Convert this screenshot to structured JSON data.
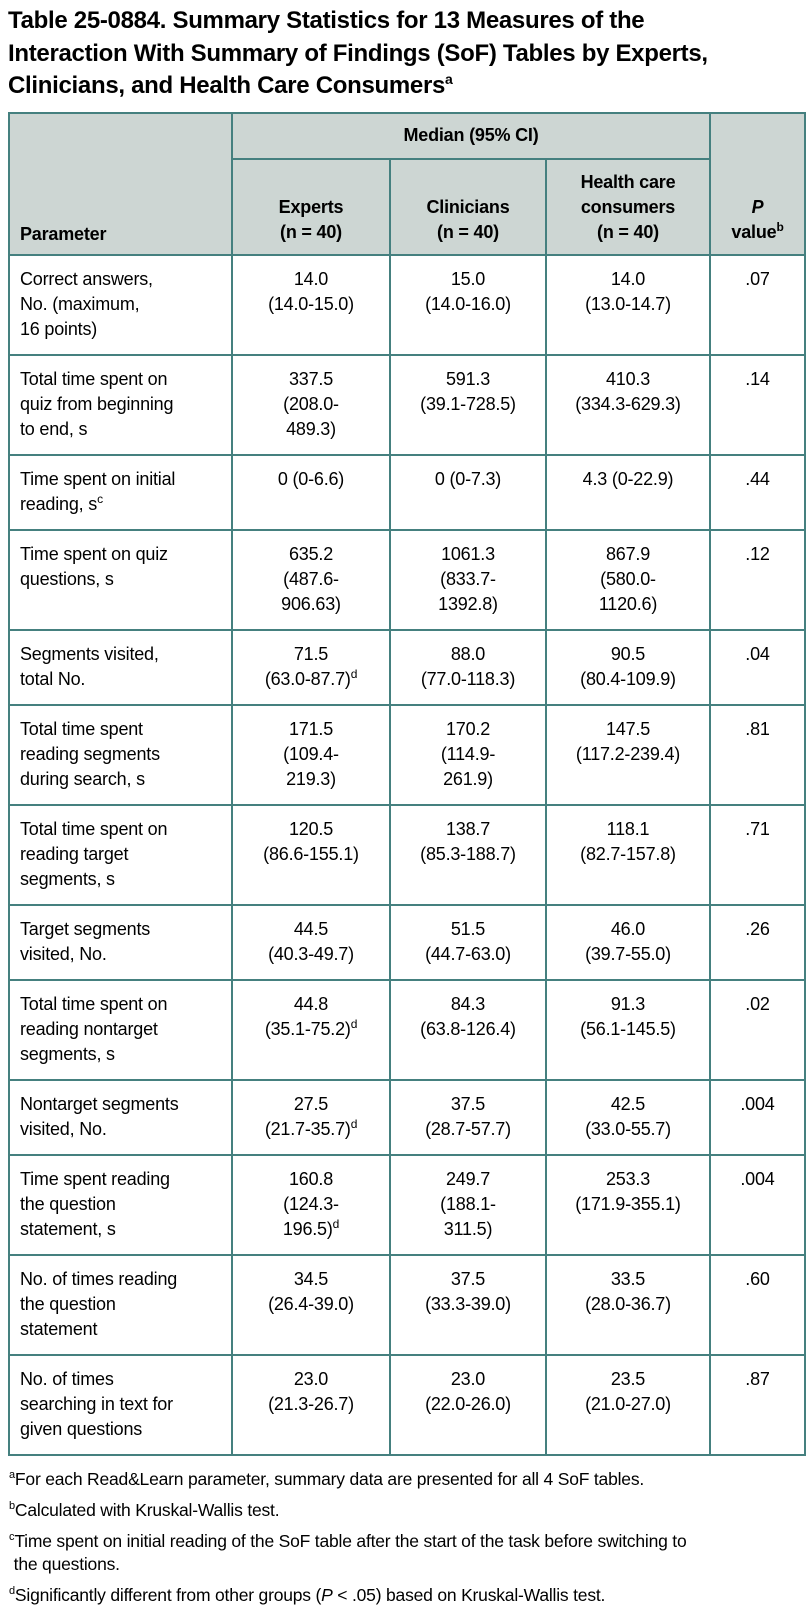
{
  "title": {
    "text": "Table 25-0884. Summary Statistics for 13 Measures of the\nInteraction With Summary of Findings (SoF) Tables by Experts,\nClinicians, and Health Care Consumers",
    "sup": "a"
  },
  "header": {
    "parameter": "Parameter",
    "median_group": "Median (95% CI)",
    "experts": "Experts\n(n = 40)",
    "clinicians": "Clinicians\n(n = 40)",
    "consumers": "Health care\nconsumers\n(n = 40)",
    "p_italic": "P",
    "p_rest": "value",
    "p_sup": "b"
  },
  "rows": [
    {
      "param": "Correct answers,\nNo. (maximum,\n16 points)",
      "experts": "14.0\n(14.0-15.0)",
      "clinicians": "15.0\n(14.0-16.0)",
      "consumers": "14.0\n(13.0-14.7)",
      "p": ".07"
    },
    {
      "param": "Total time spent on\nquiz from beginning\nto end, s",
      "experts": "337.5\n(208.0-\n489.3)",
      "clinicians": "591.3\n(39.1-728.5)",
      "consumers": "410.3\n(334.3-629.3)",
      "p": ".14"
    },
    {
      "param": "Time spent on initial\nreading, s",
      "param_sup": "c",
      "experts": "0 (0-6.6)",
      "clinicians": "0 (0-7.3)",
      "consumers": "4.3 (0-22.9)",
      "p": ".44"
    },
    {
      "param": "Time spent on quiz\nquestions, s",
      "experts": "635.2\n(487.6-\n906.63)",
      "clinicians": "1061.3\n(833.7-\n1392.8)",
      "consumers": "867.9\n(580.0-\n1120.6)",
      "p": ".12"
    },
    {
      "param": "Segments visited,\ntotal No.",
      "experts": "71.5\n(63.0-87.7)",
      "experts_sup": "d",
      "clinicians": "88.0\n(77.0-118.3)",
      "consumers": "90.5\n(80.4-109.9)",
      "p": ".04"
    },
    {
      "param": "Total time spent\nreading segments\nduring search, s",
      "experts": "171.5\n(109.4-\n219.3)",
      "clinicians": "170.2\n(114.9-\n261.9)",
      "consumers": "147.5\n(117.2-239.4)",
      "p": ".81"
    },
    {
      "param": "Total time spent on\nreading target\nsegments, s",
      "experts": "120.5\n(86.6-155.1)",
      "clinicians": "138.7\n(85.3-188.7)",
      "consumers": "118.1\n(82.7-157.8)",
      "p": ".71"
    },
    {
      "param": "Target segments\nvisited, No.",
      "experts": "44.5\n(40.3-49.7)",
      "clinicians": "51.5\n(44.7-63.0)",
      "consumers": "46.0\n(39.7-55.0)",
      "p": ".26"
    },
    {
      "param": "Total time spent on\nreading nontarget\nsegments, s",
      "experts": "44.8\n(35.1-75.2)",
      "experts_sup": "d",
      "clinicians": "84.3\n(63.8-126.4)",
      "consumers": "91.3\n(56.1-145.5)",
      "p": ".02"
    },
    {
      "param": "Nontarget segments\nvisited, No.",
      "experts": "27.5\n(21.7-35.7)",
      "experts_sup": "d",
      "clinicians": "37.5\n(28.7-57.7)",
      "consumers": "42.5\n(33.0-55.7)",
      "p": ".004"
    },
    {
      "param": "Time spent reading\nthe question\nstatement, s",
      "experts": "160.8\n(124.3-\n196.5)",
      "experts_sup": "d",
      "clinicians": "249.7\n(188.1-\n311.5)",
      "consumers": "253.3\n(171.9-355.1)",
      "p": ".004"
    },
    {
      "param": "No. of times reading\nthe question\nstatement",
      "experts": "34.5\n(26.4-39.0)",
      "clinicians": "37.5\n(33.3-39.0)",
      "consumers": "33.5\n(28.0-36.7)",
      "p": ".60"
    },
    {
      "param": "No. of times\nsearching in text for\ngiven questions",
      "experts": "23.0\n(21.3-26.7)",
      "clinicians": "23.0\n(22.0-26.0)",
      "consumers": "23.5\n(21.0-27.0)",
      "p": ".87"
    }
  ],
  "footnotes": [
    {
      "sup": "a",
      "text": "For each Read&Learn parameter, summary data are presented for all 4 SoF tables."
    },
    {
      "sup": "b",
      "text": "Calculated with Kruskal-Wallis test."
    },
    {
      "sup": "c",
      "text": "Time spent on initial reading of the SoF table after the start of the task before switching to\n the questions."
    },
    {
      "sup": "d",
      "pre": "Significantly different from other groups (",
      "italic": "P",
      "post": " < .05) based on Kruskal-Wallis test."
    }
  ],
  "colors": {
    "border_teal": "#45807f",
    "header_fill": "#cdd6d3",
    "text": "#000000"
  }
}
